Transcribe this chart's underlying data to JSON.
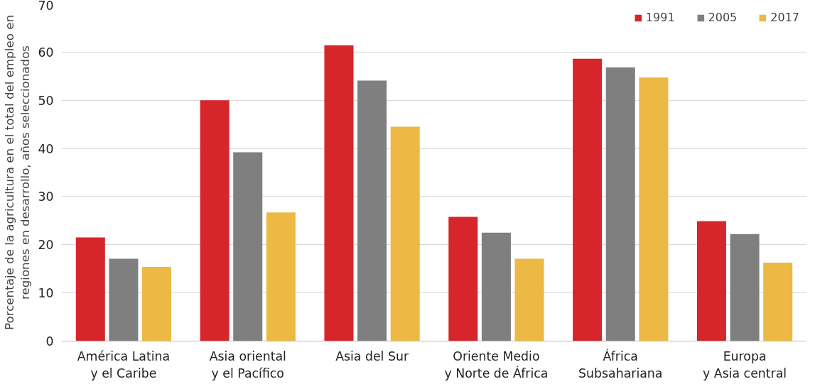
{
  "chart_data": {
    "type": "bar",
    "ylabel": "Porcentaje de la agricultura en el total del empleo en\nregiones en desarrollo, años seleccionados",
    "categories": [
      "América Latina\ny el Caribe",
      "Asia oriental\ny el Pacífico",
      "Asia del Sur",
      "Oriente Medio\ny Norte de África",
      "África\nSubsahariana",
      "Europa\ny Asia central"
    ],
    "series": [
      {
        "name": "1991",
        "color": "#d7262b",
        "values": [
          21.5,
          50.0,
          61.4,
          25.8,
          58.6,
          24.9
        ]
      },
      {
        "name": "2005",
        "color": "#7f7f7f",
        "values": [
          17.1,
          39.2,
          54.1,
          22.5,
          56.8,
          22.2
        ]
      },
      {
        "name": "2017",
        "color": "#ebb944",
        "values": [
          15.4,
          26.7,
          44.5,
          17.1,
          54.7,
          16.3
        ]
      }
    ],
    "ylim": [
      0,
      70
    ],
    "yticks": [
      0,
      10,
      20,
      30,
      40,
      50,
      60,
      70
    ],
    "grid": "y",
    "legend": "top right"
  }
}
